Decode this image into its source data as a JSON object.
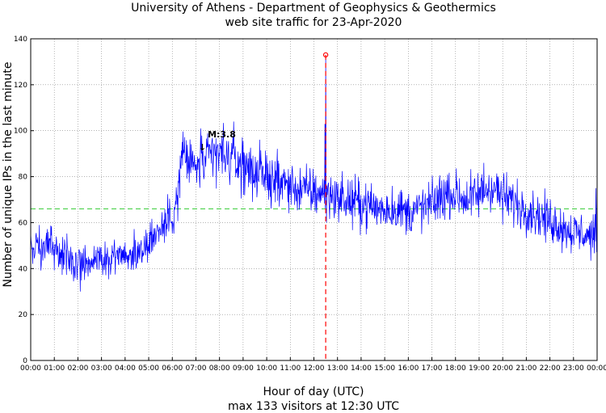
{
  "chart_data": {
    "type": "line",
    "title": "University of Athens - Department of Geophysics & Geothermics",
    "subtitle": "web site traffic for 23-Apr-2020",
    "xlabel": "Hour of day (UTC)",
    "ylabel": "Number of unique IPs in the last minute",
    "caption": "max 133 visitors at 12:30 UTC",
    "x_tick_labels": [
      "00:00",
      "01:00",
      "02:00",
      "03:00",
      "04:00",
      "05:00",
      "06:00",
      "07:00",
      "08:00",
      "09:00",
      "10:00",
      "11:00",
      "12:00",
      "13:00",
      "14:00",
      "15:00",
      "16:00",
      "17:00",
      "18:00",
      "19:00",
      "20:00",
      "21:00",
      "22:00",
      "23:00",
      "00:00"
    ],
    "y_ticks": [
      0,
      20,
      40,
      60,
      80,
      100,
      120,
      140
    ],
    "xlim": [
      0,
      24
    ],
    "ylim": [
      0,
      140
    ],
    "grid": true,
    "series": [
      {
        "color": "#0000ff",
        "x": [
          0,
          0.25,
          0.5,
          0.75,
          1,
          1.25,
          1.5,
          1.75,
          2,
          2.25,
          2.5,
          2.75,
          3,
          3.25,
          3.5,
          3.75,
          4,
          4.25,
          4.5,
          4.75,
          5,
          5.25,
          5.5,
          5.75,
          6,
          6.25,
          6.4,
          6.6,
          6.8,
          7,
          7.25,
          7.5,
          7.75,
          8,
          8.25,
          8.5,
          8.75,
          9,
          9.25,
          9.5,
          9.75,
          10,
          10.25,
          10.5,
          10.75,
          11,
          11.25,
          11.5,
          11.75,
          12,
          12.25,
          12.5,
          12.75,
          13,
          13.25,
          13.5,
          13.75,
          14,
          14.25,
          14.5,
          14.75,
          15,
          15.25,
          15.5,
          15.75,
          16,
          16.25,
          16.5,
          16.75,
          17,
          17.25,
          17.5,
          17.75,
          18,
          18.25,
          18.5,
          18.75,
          19,
          19.25,
          19.5,
          19.75,
          20,
          20.25,
          20.5,
          20.75,
          21,
          21.25,
          21.5,
          21.75,
          22,
          22.25,
          22.5,
          22.75,
          23,
          23.25,
          23.5,
          23.75,
          24
        ],
        "y": [
          50,
          51,
          49,
          50,
          48,
          46,
          45,
          44,
          42,
          43,
          44,
          44,
          43,
          44,
          45,
          46,
          45,
          46,
          47,
          49,
          52,
          55,
          57,
          60,
          64,
          72,
          90,
          88,
          85,
          84,
          86,
          87,
          89,
          90,
          89,
          87,
          86,
          85,
          84,
          82,
          81,
          80,
          79,
          78,
          77,
          76,
          75,
          74,
          74,
          73,
          73,
          72,
          72,
          71,
          70,
          69,
          69,
          68,
          68,
          67,
          66,
          66,
          66,
          66,
          65,
          65,
          65,
          66,
          67,
          68,
          70,
          72,
          73,
          72,
          71,
          70,
          71,
          72,
          74,
          76,
          74,
          71,
          70,
          69,
          67,
          66,
          65,
          63,
          62,
          61,
          60,
          58,
          57,
          56,
          55,
          55,
          54,
          53
        ],
        "spikes": [
          {
            "x": 12.5,
            "y": 133
          },
          {
            "x": 12.47,
            "y": 103
          },
          {
            "x": 7.2,
            "y": 101
          },
          {
            "x": 8.6,
            "y": 104
          },
          {
            "x": 19.2,
            "y": 86
          },
          {
            "x": 23.95,
            "y": 75
          },
          {
            "x": 2.1,
            "y": 30
          }
        ]
      }
    ],
    "reference_line": {
      "y": 66,
      "color": "#33cc33",
      "style": "dashed"
    },
    "max_marker": {
      "x": 12.5,
      "y": 133,
      "color": "#ff0000"
    },
    "annotations": [
      {
        "text": "M:3.8",
        "arrow": "↓",
        "x": 7.5,
        "y": 95
      }
    ]
  }
}
